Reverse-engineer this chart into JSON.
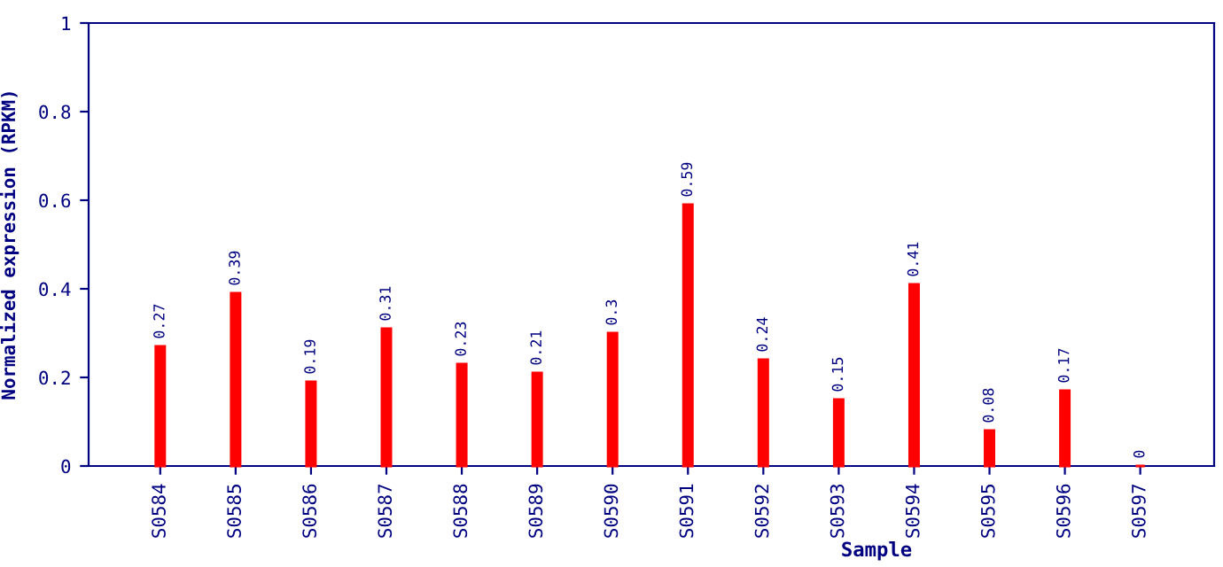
{
  "chart_data": {
    "type": "bar",
    "xlabel": "Sample",
    "ylabel": "Normalized expression (RPKM)",
    "categories": [
      "S0584",
      "S0585",
      "S0586",
      "S0587",
      "S0588",
      "S0589",
      "S0590",
      "S0591",
      "S0592",
      "S0593",
      "S0594",
      "S0595",
      "S0596",
      "S0597"
    ],
    "values": [
      0.27,
      0.39,
      0.19,
      0.31,
      0.23,
      0.21,
      0.3,
      0.59,
      0.24,
      0.15,
      0.41,
      0.08,
      0.17,
      0
    ],
    "color": "#ff0000",
    "ylim": [
      0,
      1
    ],
    "yticks": [
      0,
      0.2,
      0.4,
      0.6,
      0.8,
      1
    ],
    "data_labels": true,
    "grid": false,
    "legend": false
  }
}
